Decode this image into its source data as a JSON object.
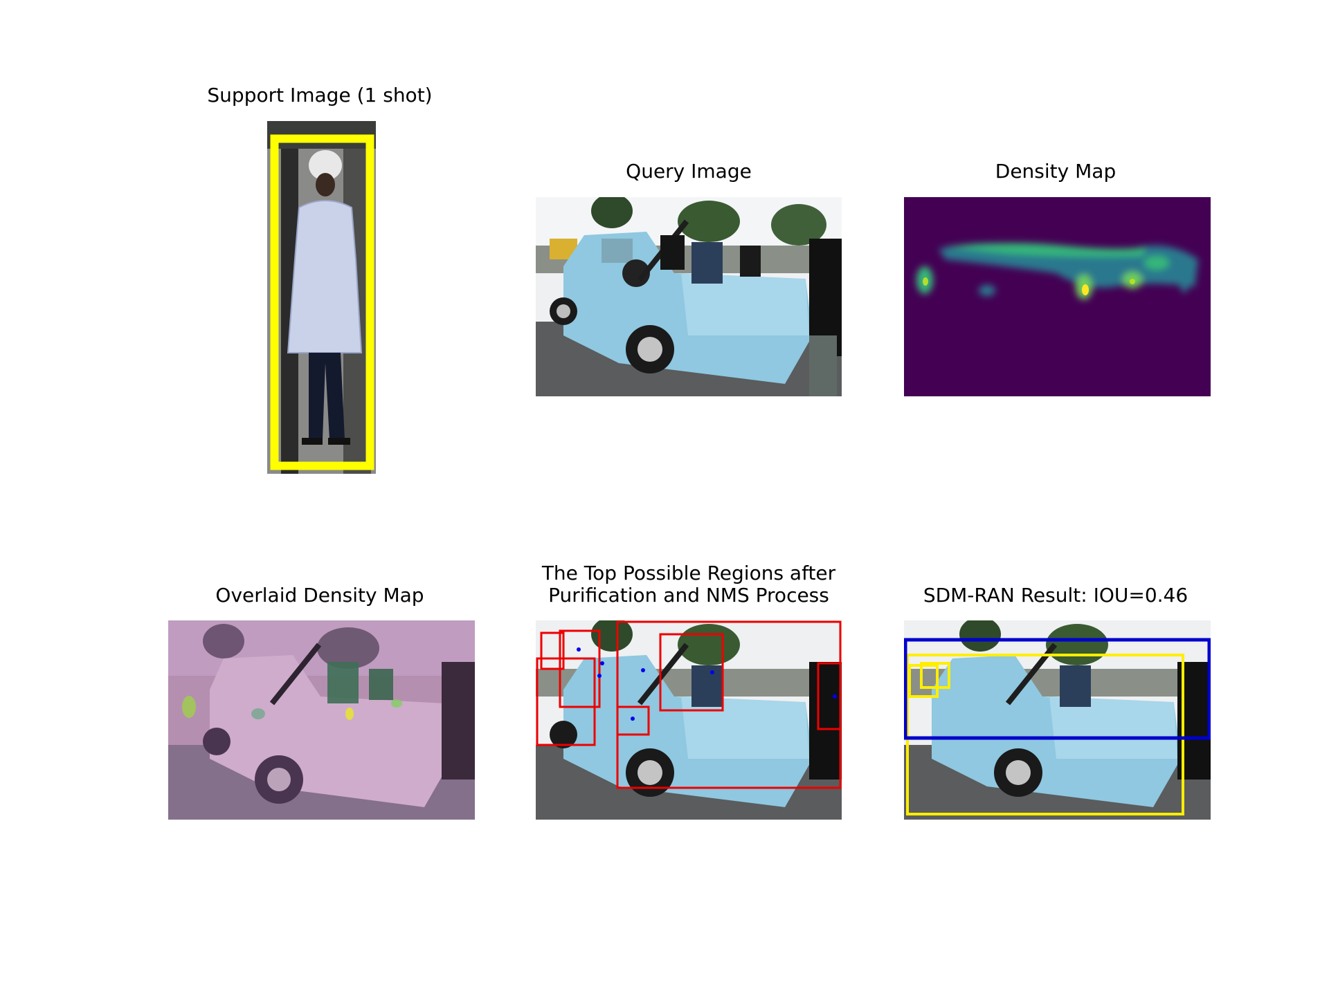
{
  "figure": {
    "panels": [
      {
        "id": "support",
        "title": "Support Image (1 shot)"
      },
      {
        "id": "query",
        "title": "Query Image"
      },
      {
        "id": "density",
        "title": "Density Map"
      },
      {
        "id": "overlaid",
        "title": "Overlaid Density Map"
      },
      {
        "id": "regions",
        "title_lines": [
          "The Top Possible Regions after",
          "Purification and NMS Process"
        ]
      },
      {
        "id": "result",
        "title": "SDM-RAN Result: IOU=0.46"
      }
    ],
    "colors": {
      "support_box": "#ffff00",
      "region_box": "#ee0000",
      "region_point": "#0000ee",
      "result_gt_box": "#ffee00",
      "result_pred_box": "#0000cc",
      "density_bg": "#440154",
      "density_mid": "#21918c",
      "density_high": "#fde725"
    }
  }
}
